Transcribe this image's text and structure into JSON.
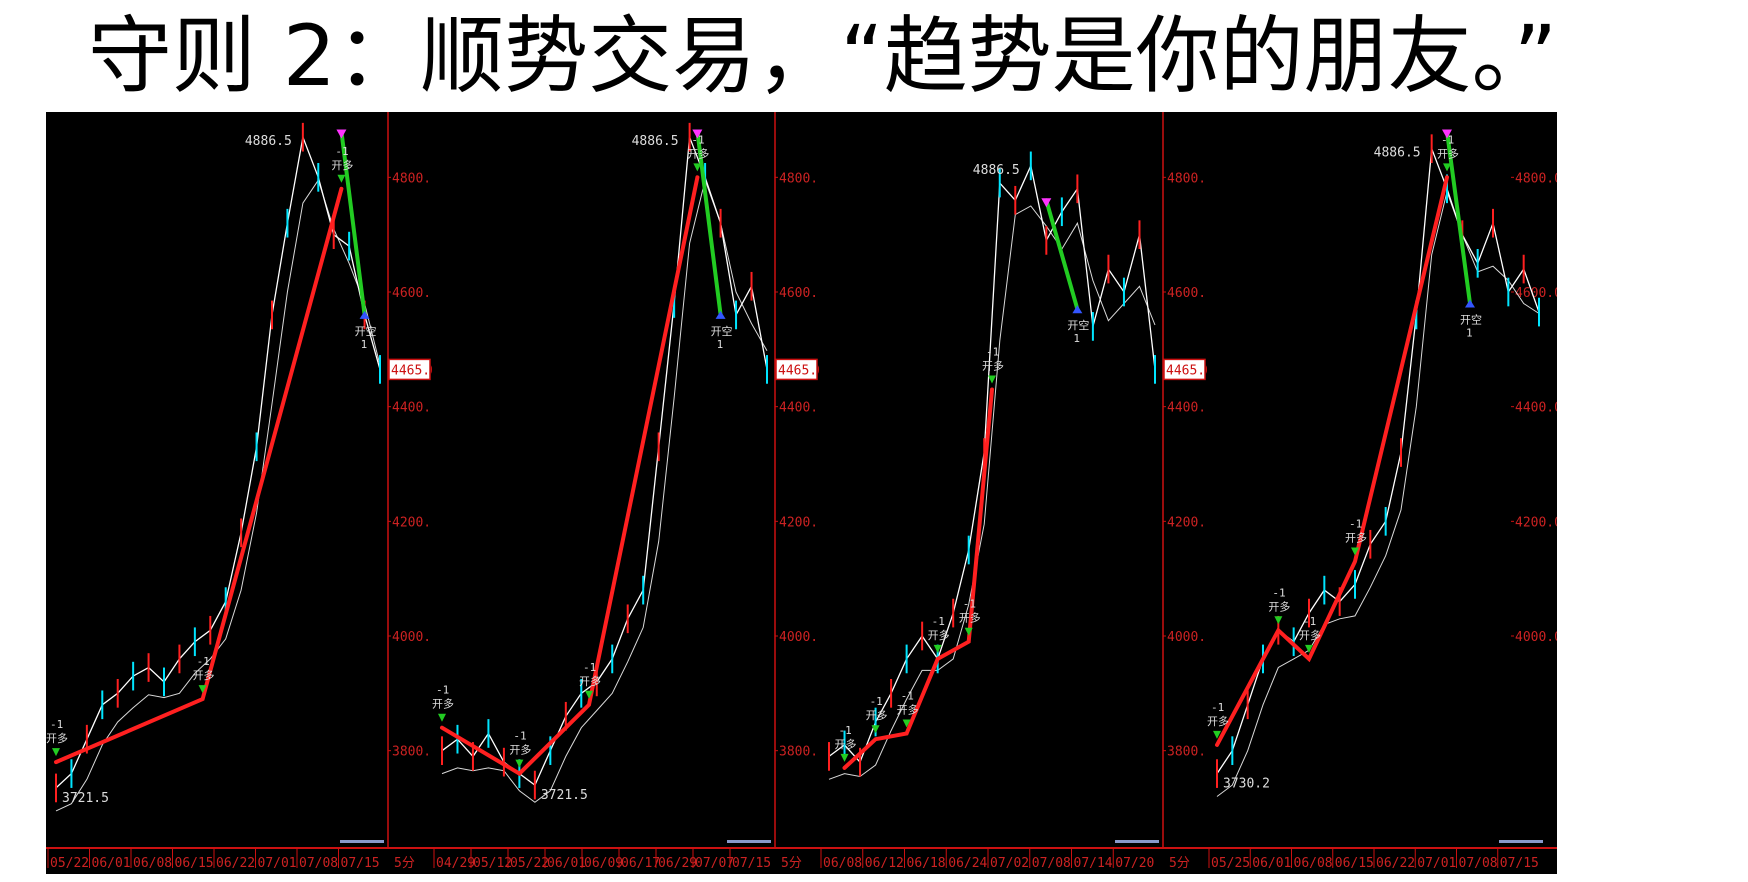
{
  "title": "守则 2：顺势交易，“趋势是你的朋友。”",
  "colors": {
    "background": "#000000",
    "price_line": "#ffffff",
    "trend_up": "#ff2020",
    "trend_down": "#22cc22",
    "axis": "#cc1111",
    "axis_text": "#cc2222",
    "highlight": "#00e5ff",
    "marker_pink": "#ff33ff",
    "marker_blue": "#3355ff"
  },
  "chart_data": [
    {
      "type": "line",
      "title": "",
      "timeframe_label": "5分",
      "x_ticks": [
        "05/22",
        "06/01",
        "06/08",
        "06/15",
        "06/22",
        "07/01",
        "07/08",
        "07/15"
      ],
      "y_ticks": [
        3800.0,
        4000.0,
        4200.0,
        4400.0,
        4600.0,
        4800.0
      ],
      "ylim": [
        3700,
        4900
      ],
      "current_price_label": "4465.0",
      "high_label": "4886.5",
      "low_label": "3721.5",
      "series": [
        {
          "name": "price",
          "values": [
            3735,
            3760,
            3820,
            3880,
            3900,
            3930,
            3945,
            3920,
            3960,
            3990,
            4010,
            4060,
            4180,
            4330,
            4560,
            4720,
            4870,
            4800,
            4700,
            4680,
            4560,
            4465
          ]
        },
        {
          "name": "trend_up",
          "x": [
            0,
            9.5,
            18.5
          ],
          "values": [
            3780,
            3890,
            4780
          ]
        },
        {
          "name": "trend_down",
          "x": [
            18.5,
            20
          ],
          "values": [
            4880,
            4560
          ]
        }
      ],
      "signals": [
        "-1",
        "开多",
        "开空",
        "1"
      ]
    },
    {
      "type": "line",
      "title": "",
      "timeframe_label": "5分",
      "x_ticks": [
        "04/29",
        "05/12",
        "05/22",
        "06/01",
        "06/09",
        "06/17",
        "06/29",
        "07/07",
        "07/15"
      ],
      "y_ticks": [
        3800.0,
        4000.0,
        4200.0,
        4400.0,
        4600.0,
        4800.0
      ],
      "ylim": [
        3700,
        4900
      ],
      "current_price_label": "4465.0",
      "high_label": "4886.5",
      "low_label": "3721.5",
      "series": [
        {
          "name": "price",
          "values": [
            3800,
            3820,
            3790,
            3830,
            3780,
            3760,
            3740,
            3800,
            3860,
            3900,
            3920,
            3960,
            4030,
            4080,
            4330,
            4580,
            4870,
            4800,
            4720,
            4560,
            4610,
            4465
          ]
        },
        {
          "name": "trend_up",
          "x": [
            0,
            5,
            9.5,
            16.5
          ],
          "values": [
            3840,
            3760,
            3880,
            4800
          ]
        },
        {
          "name": "trend_down",
          "x": [
            16.5,
            18
          ],
          "values": [
            4880,
            4560
          ]
        }
      ],
      "signals": [
        "-1",
        "开多",
        "开空",
        "1"
      ]
    },
    {
      "type": "line",
      "title": "",
      "timeframe_label": "5分",
      "x_ticks": [
        "06/08",
        "06/12",
        "06/18",
        "06/24",
        "07/02",
        "07/08",
        "07/14",
        "07/20"
      ],
      "y_ticks": [
        3800.0,
        4000.0,
        4200.0,
        4400.0,
        4600.0,
        4800.0
      ],
      "ylim": [
        3700,
        4900
      ],
      "current_price_label": "4465.0",
      "high_label": "4886.5",
      "low_label": "",
      "series": [
        {
          "name": "price",
          "values": [
            3790,
            3810,
            3780,
            3850,
            3900,
            3960,
            4000,
            3960,
            4040,
            4150,
            4320,
            4790,
            4760,
            4820,
            4690,
            4740,
            4780,
            4540,
            4640,
            4600,
            4700,
            4465
          ]
        },
        {
          "name": "trend_up",
          "x": [
            1,
            3,
            5,
            7,
            9,
            10.5
          ],
          "values": [
            3770,
            3820,
            3830,
            3960,
            3990,
            4430
          ]
        },
        {
          "name": "trend_down",
          "x": [
            14,
            16
          ],
          "values": [
            4760,
            4570
          ]
        }
      ],
      "signals": [
        "-1",
        "开多",
        "开空",
        "1"
      ]
    },
    {
      "type": "line",
      "title": "",
      "timeframe_label": "",
      "x_ticks": [
        "05/25",
        "06/01",
        "06/08",
        "06/15",
        "06/22",
        "07/01",
        "07/08",
        "07/15"
      ],
      "y_ticks": [
        4000.0,
        4200.0,
        4400.0,
        4600.0,
        4800.0
      ],
      "ylim": [
        3700,
        4900
      ],
      "current_price_label": "",
      "high_label": "4886.5",
      "low_label": "3730.2",
      "series": [
        {
          "name": "price",
          "values": [
            3760,
            3800,
            3880,
            3960,
            4010,
            3990,
            4040,
            4080,
            4060,
            4090,
            4160,
            4200,
            4320,
            4560,
            4850,
            4780,
            4700,
            4650,
            4720,
            4600,
            4640,
            4565
          ]
        },
        {
          "name": "trend_up",
          "x": [
            0,
            4,
            6,
            9,
            15
          ],
          "values": [
            3810,
            4010,
            3960,
            4130,
            4800
          ]
        },
        {
          "name": "trend_down",
          "x": [
            15,
            16.5
          ],
          "values": [
            4880,
            4580
          ]
        }
      ],
      "signals": [
        "-1",
        "开多",
        "开空",
        "1"
      ]
    }
  ]
}
